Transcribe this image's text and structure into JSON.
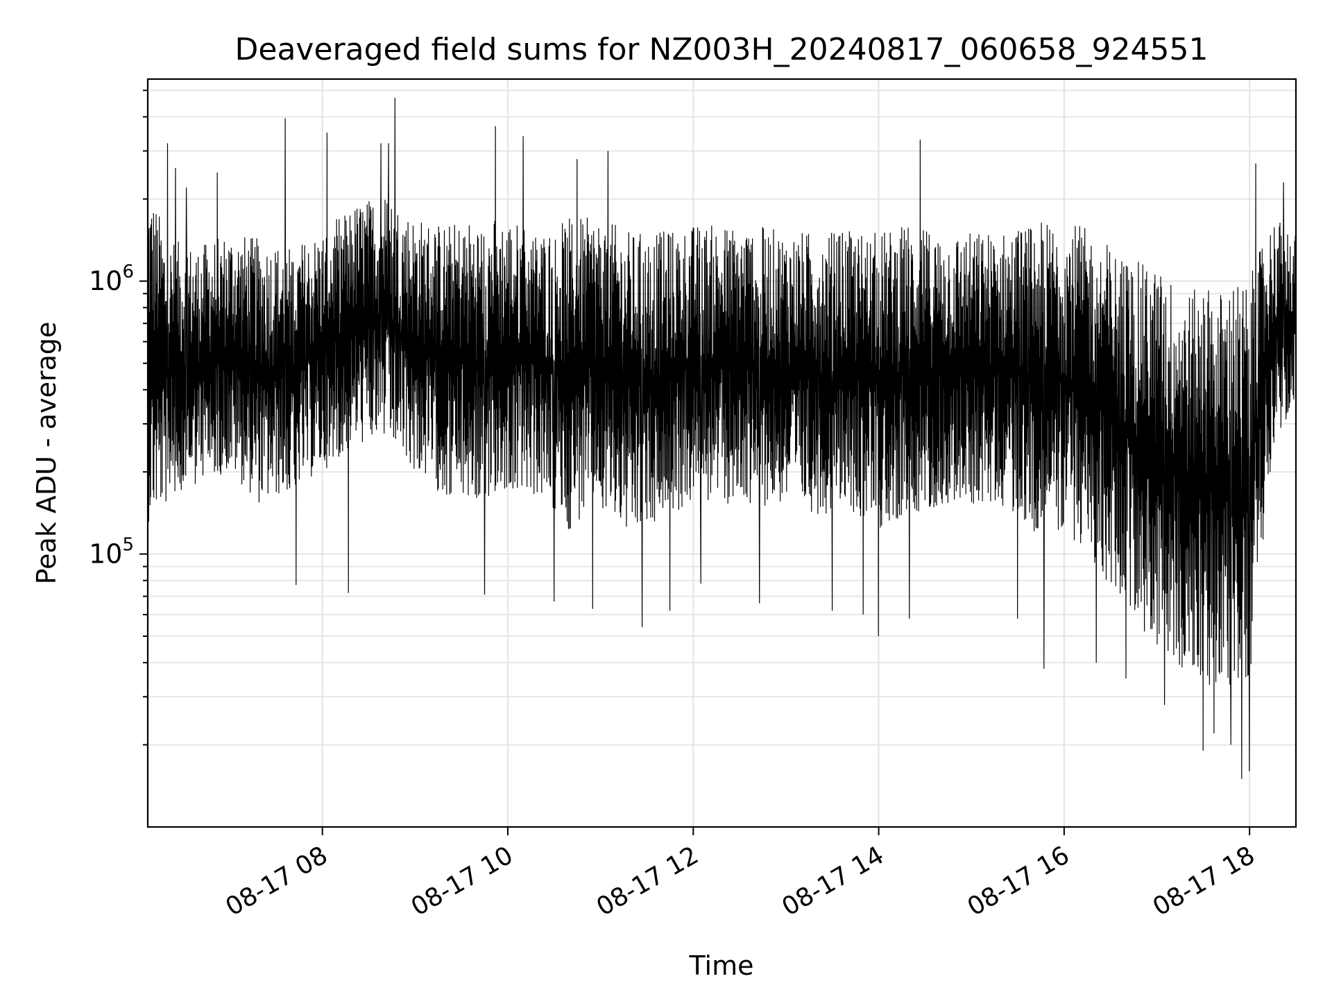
{
  "chart_data": {
    "type": "line",
    "title": "Deaveraged field sums for NZ003H_20240817_060658_924551",
    "xlabel": "Time",
    "ylabel": "Peak ADU - average",
    "yscale": "log",
    "xlim": [
      "2024-08-17 06:07",
      "2024-08-17 18:30"
    ],
    "ylim": [
      10000,
      5500000
    ],
    "x_ticks": [
      {
        "value": "2024-08-17 08:00",
        "label": "08-17 08"
      },
      {
        "value": "2024-08-17 10:00",
        "label": "08-17 10"
      },
      {
        "value": "2024-08-17 12:00",
        "label": "08-17 12"
      },
      {
        "value": "2024-08-17 14:00",
        "label": "08-17 14"
      },
      {
        "value": "2024-08-17 16:00",
        "label": "08-17 16"
      },
      {
        "value": "2024-08-17 18:00",
        "label": "08-17 18"
      }
    ],
    "y_ticks": [
      {
        "value": 100000,
        "base": "10",
        "exp": "5"
      },
      {
        "value": 1000000,
        "base": "10",
        "exp": "6"
      }
    ],
    "grid": true,
    "series": [
      {
        "color": "#000000",
        "x": [
          "2024-08-17 06:07",
          "2024-08-17 06:20",
          "2024-08-17 06:40",
          "2024-08-17 07:00",
          "2024-08-17 07:20",
          "2024-08-17 07:40",
          "2024-08-17 08:00",
          "2024-08-17 08:20",
          "2024-08-17 08:40",
          "2024-08-17 09:00",
          "2024-08-17 09:20",
          "2024-08-17 09:40",
          "2024-08-17 10:00",
          "2024-08-17 10:20",
          "2024-08-17 10:40",
          "2024-08-17 11:00",
          "2024-08-17 11:20",
          "2024-08-17 11:40",
          "2024-08-17 12:00",
          "2024-08-17 12:20",
          "2024-08-17 12:40",
          "2024-08-17 13:00",
          "2024-08-17 13:20",
          "2024-08-17 13:40",
          "2024-08-17 14:00",
          "2024-08-17 14:20",
          "2024-08-17 14:40",
          "2024-08-17 15:00",
          "2024-08-17 15:20",
          "2024-08-17 15:40",
          "2024-08-17 16:00",
          "2024-08-17 16:20",
          "2024-08-17 16:40",
          "2024-08-17 17:00",
          "2024-08-17 17:20",
          "2024-08-17 17:40",
          "2024-08-17 18:00",
          "2024-08-17 18:15",
          "2024-08-17 18:30"
        ],
        "y_low": [
          130000,
          150000,
          180000,
          200000,
          150000,
          170000,
          200000,
          250000,
          250000,
          200000,
          160000,
          150000,
          170000,
          160000,
          120000,
          150000,
          110000,
          130000,
          150000,
          150000,
          150000,
          150000,
          140000,
          140000,
          120000,
          140000,
          150000,
          150000,
          150000,
          120000,
          120000,
          90000,
          60000,
          45000,
          35000,
          30000,
          35000,
          250000,
          350000
        ],
        "y_high": [
          2500000,
          1500000,
          1400000,
          1600000,
          1500000,
          1400000,
          1600000,
          2000000,
          2200000,
          1800000,
          1700000,
          1800000,
          1800000,
          1600000,
          1800000,
          1800000,
          1600000,
          1600000,
          1700000,
          1700000,
          1700000,
          1600000,
          1600000,
          1600000,
          1600000,
          1700000,
          1600000,
          1600000,
          1600000,
          1700000,
          1800000,
          1600000,
          1300000,
          1200000,
          1000000,
          1000000,
          1100000,
          1800000,
          1600000
        ],
        "spikes": [
          {
            "x": "2024-08-17 06:20",
            "y": 3200000
          },
          {
            "x": "2024-08-17 06:25",
            "y": 2600000
          },
          {
            "x": "2024-08-17 06:32",
            "y": 2200000
          },
          {
            "x": "2024-08-17 06:52",
            "y": 2500000
          },
          {
            "x": "2024-08-17 07:36",
            "y": 3950000
          },
          {
            "x": "2024-08-17 07:43",
            "y": 77000
          },
          {
            "x": "2024-08-17 08:03",
            "y": 3500000
          },
          {
            "x": "2024-08-17 08:17",
            "y": 72000
          },
          {
            "x": "2024-08-17 08:38",
            "y": 3200000
          },
          {
            "x": "2024-08-17 08:43",
            "y": 3200000
          },
          {
            "x": "2024-08-17 08:47",
            "y": 4700000
          },
          {
            "x": "2024-08-17 09:45",
            "y": 71000
          },
          {
            "x": "2024-08-17 09:52",
            "y": 3700000
          },
          {
            "x": "2024-08-17 10:10",
            "y": 3400000
          },
          {
            "x": "2024-08-17 10:30",
            "y": 67000
          },
          {
            "x": "2024-08-17 10:45",
            "y": 2800000
          },
          {
            "x": "2024-08-17 10:55",
            "y": 63000
          },
          {
            "x": "2024-08-17 11:05",
            "y": 3000000
          },
          {
            "x": "2024-08-17 11:27",
            "y": 54000
          },
          {
            "x": "2024-08-17 11:45",
            "y": 62000
          },
          {
            "x": "2024-08-17 12:05",
            "y": 78000
          },
          {
            "x": "2024-08-17 12:43",
            "y": 66000
          },
          {
            "x": "2024-08-17 13:30",
            "y": 62000
          },
          {
            "x": "2024-08-17 13:50",
            "y": 60000
          },
          {
            "x": "2024-08-17 14:00",
            "y": 50000
          },
          {
            "x": "2024-08-17 14:20",
            "y": 58000
          },
          {
            "x": "2024-08-17 14:27",
            "y": 3300000
          },
          {
            "x": "2024-08-17 15:30",
            "y": 58000
          },
          {
            "x": "2024-08-17 15:47",
            "y": 38000
          },
          {
            "x": "2024-08-17 16:21",
            "y": 40000
          },
          {
            "x": "2024-08-17 16:40",
            "y": 35000
          },
          {
            "x": "2024-08-17 17:05",
            "y": 28000
          },
          {
            "x": "2024-08-17 17:30",
            "y": 19000
          },
          {
            "x": "2024-08-17 17:37",
            "y": 22000
          },
          {
            "x": "2024-08-17 17:48",
            "y": 20000
          },
          {
            "x": "2024-08-17 17:55",
            "y": 15000
          },
          {
            "x": "2024-08-17 18:00",
            "y": 16000
          },
          {
            "x": "2024-08-17 18:04",
            "y": 2700000
          },
          {
            "x": "2024-08-17 18:22",
            "y": 2300000
          }
        ]
      }
    ]
  }
}
